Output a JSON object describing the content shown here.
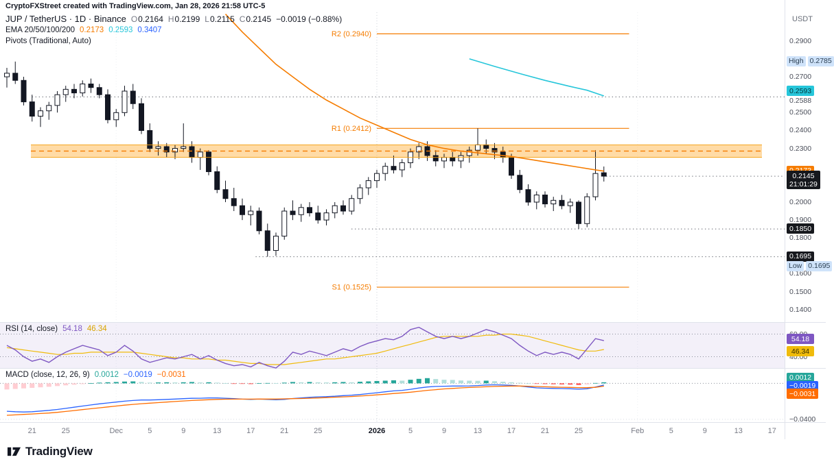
{
  "attribution": "CryptoFXStreet created with TradingView.com, Jan 28, 2026 21:58 UTC-5",
  "symbol": {
    "title": "JUP / TetherUS · 1D · Binance",
    "o_key": "O",
    "o_val": "0.2164",
    "h_key": "H",
    "h_val": "0.2199",
    "l_key": "L",
    "l_val": "0.2115",
    "c_key": "C",
    "c_val": "0.2145",
    "change": "−0.0019 (−0.88%)"
  },
  "ema": {
    "label": "EMA 20/50/100/200",
    "v1": "0.2173",
    "c1": "#f57c00",
    "v2": "0.2593",
    "c2": "#26c6da",
    "v3": "0.3407",
    "c3": "#2962ff"
  },
  "pivots_label": "Pivots (Traditional, Auto)",
  "rsi_legend": {
    "label": "RSI (14, close)",
    "v1": "54.18",
    "c1": "#7e57c2",
    "v2": "46.34",
    "c2": "#d9a400"
  },
  "macd_legend": {
    "label": "MACD (close, 12, 26, 9)",
    "v1": "0.0012",
    "c1": "#26a69a",
    "v2": "−0.0019",
    "c2": "#2962ff",
    "v3": "−0.0031",
    "c3": "#ff6d00"
  },
  "logo_text": "TradingView",
  "colors": {
    "up": "#ffffff",
    "down": "#131722",
    "ema_orange": "#f57c00",
    "ema_cyan": "#26c6da",
    "rsi": "#7e57c2",
    "rsi_ma": "#f0bb0b",
    "macd": "#2962ff",
    "signal": "#ff6d00",
    "hist_pos": "#26a69a",
    "hist_pos_weak": "#b2dfdb",
    "hist_neg": "#ff5252",
    "hist_neg_weak": "#ffcdd2",
    "pivot": "#f57c00",
    "zone_fill": "#ffb74d"
  },
  "price_axis": {
    "unit": "USDT",
    "ticks": [
      {
        "t": "0.2900",
        "v": 0.29
      },
      {
        "t": "0.2700",
        "v": 0.27
      },
      {
        "t": "0.2588",
        "v": 0.2588,
        "dy": 6
      },
      {
        "t": "0.2500",
        "v": 0.25
      },
      {
        "t": "0.2400",
        "v": 0.24
      },
      {
        "t": "0.2300",
        "v": 0.23
      },
      {
        "t": "0.2000",
        "v": 0.2
      },
      {
        "t": "0.1900",
        "v": 0.19
      },
      {
        "t": "0.1800",
        "v": 0.18
      },
      {
        "t": "0.1600",
        "v": 0.16
      },
      {
        "t": "0.1500",
        "v": 0.15
      },
      {
        "t": "0.1400",
        "v": 0.14
      }
    ],
    "badges": [
      {
        "t": "0.2785",
        "v": 0.2785,
        "style": "hilo",
        "label": "High"
      },
      {
        "t": "0.2593",
        "v": 0.2593,
        "bg": "#26c6da",
        "fg": "#00353b",
        "dy": -7
      },
      {
        "t": "0.2173",
        "v": 0.2173,
        "bg": "#f57c00",
        "fg": "#ffffff"
      },
      {
        "t": "0.2145",
        "v": 0.2145,
        "bg": "#16181d",
        "fg": "#ffffff",
        "countdown": "21:01:29"
      },
      {
        "t": "0.1850",
        "v": 0.185,
        "bg": "#16181d",
        "fg": "#ffffff"
      },
      {
        "t": "0.1695",
        "v": 0.1695,
        "bg": "#16181d",
        "fg": "#ffffff"
      },
      {
        "t": "0.1695",
        "v": 0.1695,
        "style": "hilo",
        "label": "Low",
        "dy": 14
      }
    ]
  },
  "rsi_axis": {
    "ticks": [
      {
        "t": "60.00",
        "v": 60
      },
      {
        "t": "40.00",
        "v": 40
      }
    ],
    "badges": [
      {
        "t": "54.18",
        "v": 54.18,
        "bg": "#7e57c2",
        "fg": "#ffffff",
        "dy": -2
      },
      {
        "t": "46.34",
        "v": 46.34,
        "bg": "#f0bb0b",
        "fg": "#3a2f00",
        "dy": 3
      }
    ]
  },
  "macd_axis": {
    "ticks": [
      {
        "t": "−0.0400",
        "v": -0.04
      }
    ],
    "badges": [
      {
        "t": "0.0012",
        "v": 0.0012,
        "bg": "#26a69a",
        "fg": "#ffffff",
        "dy": -6
      },
      {
        "t": "−0.0019",
        "v": -0.0019,
        "bg": "#2962ff",
        "fg": "#ffffff",
        "dy": 2
      },
      {
        "t": "−0.0031",
        "v": -0.0031,
        "bg": "#ff6d00",
        "fg": "#ffffff",
        "dy": 12
      }
    ]
  },
  "time_axis": [
    {
      "t": "21",
      "i": 3
    },
    {
      "t": "25",
      "i": 7
    },
    {
      "t": "Dec",
      "i": 13
    },
    {
      "t": "5",
      "i": 17
    },
    {
      "t": "9",
      "i": 21
    },
    {
      "t": "13",
      "i": 25
    },
    {
      "t": "17",
      "i": 29
    },
    {
      "t": "21",
      "i": 33
    },
    {
      "t": "25",
      "i": 37
    },
    {
      "t": "2026",
      "i": 44,
      "bold": true
    },
    {
      "t": "5",
      "i": 48
    },
    {
      "t": "9",
      "i": 52
    },
    {
      "t": "13",
      "i": 56
    },
    {
      "t": "17",
      "i": 60
    },
    {
      "t": "21",
      "i": 64
    },
    {
      "t": "25",
      "i": 68
    },
    {
      "t": "Feb",
      "i": 75
    },
    {
      "t": "5",
      "i": 79
    },
    {
      "t": "9",
      "i": 83
    },
    {
      "t": "13",
      "i": 87
    },
    {
      "t": "17",
      "i": 91
    }
  ],
  "chart_data": {
    "type": "candlestick",
    "symbol": "JUP/USDT",
    "timeframe": "1D",
    "start_date": "2025-11-18",
    "price_ylim": [
      0.133,
      0.306
    ],
    "candles": [
      [
        0.27,
        0.275,
        0.264,
        0.272
      ],
      [
        0.272,
        0.2785,
        0.266,
        0.268
      ],
      [
        0.268,
        0.27,
        0.254,
        0.256
      ],
      [
        0.256,
        0.26,
        0.245,
        0.248
      ],
      [
        0.248,
        0.253,
        0.242,
        0.251
      ],
      [
        0.251,
        0.256,
        0.246,
        0.254
      ],
      [
        0.254,
        0.262,
        0.25,
        0.26
      ],
      [
        0.26,
        0.265,
        0.256,
        0.263
      ],
      [
        0.263,
        0.266,
        0.258,
        0.261
      ],
      [
        0.261,
        0.268,
        0.259,
        0.266
      ],
      [
        0.266,
        0.269,
        0.261,
        0.264
      ],
      [
        0.264,
        0.266,
        0.258,
        0.26
      ],
      [
        0.26,
        0.263,
        0.244,
        0.246
      ],
      [
        0.246,
        0.252,
        0.242,
        0.25
      ],
      [
        0.25,
        0.265,
        0.248,
        0.262
      ],
      [
        0.262,
        0.266,
        0.252,
        0.255
      ],
      [
        0.255,
        0.258,
        0.238,
        0.24
      ],
      [
        0.24,
        0.244,
        0.228,
        0.23
      ],
      [
        0.23,
        0.234,
        0.226,
        0.231
      ],
      [
        0.231,
        0.233,
        0.225,
        0.228
      ],
      [
        0.228,
        0.232,
        0.224,
        0.23
      ],
      [
        0.23,
        0.244,
        0.228,
        0.231
      ],
      [
        0.231,
        0.234,
        0.222,
        0.225
      ],
      [
        0.225,
        0.23,
        0.218,
        0.228
      ],
      [
        0.228,
        0.229,
        0.215,
        0.217
      ],
      [
        0.217,
        0.22,
        0.205,
        0.207
      ],
      [
        0.207,
        0.212,
        0.2,
        0.202
      ],
      [
        0.202,
        0.208,
        0.195,
        0.198
      ],
      [
        0.198,
        0.202,
        0.19,
        0.193
      ],
      [
        0.193,
        0.198,
        0.187,
        0.195
      ],
      [
        0.195,
        0.197,
        0.182,
        0.184
      ],
      [
        0.184,
        0.188,
        0.1695,
        0.173
      ],
      [
        0.173,
        0.183,
        0.17,
        0.181
      ],
      [
        0.181,
        0.197,
        0.179,
        0.195
      ],
      [
        0.195,
        0.201,
        0.19,
        0.193
      ],
      [
        0.193,
        0.199,
        0.189,
        0.197
      ],
      [
        0.197,
        0.2,
        0.192,
        0.194
      ],
      [
        0.194,
        0.198,
        0.188,
        0.19
      ],
      [
        0.19,
        0.196,
        0.187,
        0.194
      ],
      [
        0.194,
        0.2,
        0.191,
        0.198
      ],
      [
        0.198,
        0.201,
        0.193,
        0.195
      ],
      [
        0.195,
        0.204,
        0.193,
        0.202
      ],
      [
        0.202,
        0.21,
        0.199,
        0.208
      ],
      [
        0.208,
        0.214,
        0.204,
        0.212
      ],
      [
        0.212,
        0.218,
        0.208,
        0.216
      ],
      [
        0.216,
        0.222,
        0.212,
        0.22
      ],
      [
        0.22,
        0.226,
        0.216,
        0.218
      ],
      [
        0.218,
        0.224,
        0.214,
        0.222
      ],
      [
        0.222,
        0.23,
        0.219,
        0.228
      ],
      [
        0.228,
        0.233,
        0.224,
        0.231
      ],
      [
        0.231,
        0.234,
        0.223,
        0.226
      ],
      [
        0.226,
        0.229,
        0.22,
        0.223
      ],
      [
        0.223,
        0.227,
        0.219,
        0.225
      ],
      [
        0.225,
        0.228,
        0.22,
        0.223
      ],
      [
        0.223,
        0.228,
        0.219,
        0.226
      ],
      [
        0.226,
        0.231,
        0.222,
        0.229
      ],
      [
        0.229,
        0.2412,
        0.226,
        0.232
      ],
      [
        0.232,
        0.235,
        0.227,
        0.23
      ],
      [
        0.23,
        0.233,
        0.224,
        0.228
      ],
      [
        0.228,
        0.231,
        0.222,
        0.225
      ],
      [
        0.225,
        0.227,
        0.213,
        0.215
      ],
      [
        0.215,
        0.218,
        0.205,
        0.207
      ],
      [
        0.207,
        0.21,
        0.198,
        0.2
      ],
      [
        0.2,
        0.206,
        0.196,
        0.204
      ],
      [
        0.204,
        0.206,
        0.197,
        0.199
      ],
      [
        0.199,
        0.203,
        0.195,
        0.201
      ],
      [
        0.201,
        0.204,
        0.196,
        0.198
      ],
      [
        0.198,
        0.202,
        0.194,
        0.2
      ],
      [
        0.2,
        0.201,
        0.185,
        0.188
      ],
      [
        0.188,
        0.205,
        0.186,
        0.203
      ],
      [
        0.203,
        0.229,
        0.201,
        0.216
      ],
      [
        0.2164,
        0.2199,
        0.2115,
        0.2145
      ]
    ],
    "ema_orange": {
      "name": "EMA (orange)",
      "last": 0.2173,
      "points": [
        [
          26,
          0.305
        ],
        [
          28,
          0.295
        ],
        [
          30,
          0.286
        ],
        [
          32,
          0.277
        ],
        [
          34,
          0.27
        ],
        [
          36,
          0.263
        ],
        [
          38,
          0.257
        ],
        [
          40,
          0.252
        ],
        [
          42,
          0.247
        ],
        [
          44,
          0.243
        ],
        [
          46,
          0.239
        ],
        [
          48,
          0.235
        ],
        [
          50,
          0.232
        ],
        [
          52,
          0.23
        ],
        [
          54,
          0.2285
        ],
        [
          56,
          0.2275
        ],
        [
          58,
          0.2265
        ],
        [
          60,
          0.2255
        ],
        [
          62,
          0.224
        ],
        [
          64,
          0.2225
        ],
        [
          66,
          0.221
        ],
        [
          68,
          0.2195
        ],
        [
          70,
          0.218
        ],
        [
          71,
          0.2173
        ]
      ]
    },
    "ema_cyan": {
      "name": "EMA (cyan)",
      "last": 0.2593,
      "points": [
        [
          55,
          0.28
        ],
        [
          58,
          0.2758
        ],
        [
          61,
          0.2718
        ],
        [
          64,
          0.268
        ],
        [
          67,
          0.2646
        ],
        [
          69,
          0.2625
        ],
        [
          71,
          0.2593
        ]
      ]
    },
    "pivots": {
      "span": [
        44,
        74
      ],
      "r2": {
        "label": "R2 (0.2940)",
        "v": 0.294
      },
      "r1": {
        "label": "R1 (0.2412)",
        "v": 0.2412
      },
      "s1": {
        "label": "S1 (0.1525)",
        "v": 0.1525
      }
    },
    "supply_zone": {
      "top": 0.232,
      "bottom": 0.225,
      "mid": 0.2285
    },
    "levels": [
      {
        "v": 0.2588,
        "from": 3
      },
      {
        "v": 0.2145,
        "from": 71.3
      },
      {
        "v": 0.185,
        "from": 41
      },
      {
        "v": 0.1695,
        "from": 29.6
      }
    ],
    "high_marker": {
      "label": "High",
      "value": 0.2785
    },
    "low_marker": {
      "label": "Low",
      "value": 0.1695
    },
    "rsi": {
      "ylim": [
        30,
        70
      ],
      "levels": [
        60,
        40
      ],
      "last": 54.18,
      "ma_last": 46.34,
      "values": [
        50,
        46,
        40,
        36,
        38,
        35,
        40,
        44,
        47,
        50,
        48,
        46,
        41,
        44,
        50,
        45,
        38,
        35,
        37,
        39,
        38,
        40,
        42,
        38,
        41,
        37,
        34,
        32,
        33,
        31,
        35,
        32,
        30,
        36,
        44,
        42,
        45,
        43,
        41,
        44,
        47,
        45,
        49,
        52,
        54,
        56,
        55,
        58,
        64,
        66,
        62,
        58,
        56,
        58,
        56,
        58,
        61,
        64,
        62,
        59,
        56,
        50,
        45,
        41,
        44,
        42,
        44,
        42,
        38,
        47,
        56,
        54.18
      ],
      "ma": [
        48,
        47,
        46,
        45,
        44,
        43,
        42,
        42,
        43,
        43,
        44,
        44,
        44,
        44,
        44,
        44,
        43,
        42,
        41,
        40,
        39,
        39,
        38,
        38,
        38,
        37,
        37,
        36,
        35,
        34,
        34,
        33,
        33,
        33,
        34,
        35,
        36,
        37,
        38,
        38,
        39,
        40,
        41,
        42,
        43,
        45,
        47,
        49,
        51,
        53,
        55,
        57,
        58,
        58,
        58,
        58,
        58,
        59,
        59,
        60,
        60,
        59,
        58,
        56,
        54,
        52,
        50,
        48,
        46,
        45,
        45,
        46.34
      ]
    },
    "macd": {
      "ylim": [
        -0.0431,
        0.0163
      ],
      "last_hist": 0.0012,
      "last_macd": -0.0019,
      "last_signal": -0.0031,
      "hist": [
        -0.0068,
        -0.0062,
        -0.0056,
        -0.005,
        -0.0044,
        -0.0038,
        -0.003,
        -0.0022,
        -0.0015,
        -0.0008,
        0.0002,
        0.0008,
        0.0012,
        0.0015,
        0.002,
        0.0022,
        0.0015,
        0.0008,
        0.001,
        0.0012,
        0.001,
        0.0012,
        0.0015,
        0.001,
        0.0012,
        0.0008,
        0.0002,
        -0.0004,
        -0.0006,
        -0.0008,
        0.0002,
        0.0004,
        0.0002,
        0.0008,
        0.0015,
        0.0012,
        0.0015,
        0.0012,
        0.001,
        0.0012,
        0.0015,
        0.0012,
        0.0018,
        0.0022,
        0.0026,
        0.003,
        0.0034,
        0.003,
        0.004,
        0.005,
        0.0058,
        0.0048,
        0.004,
        0.0038,
        0.0032,
        0.003,
        0.0028,
        0.003,
        0.0024,
        0.0018,
        0.0012,
        0.0006,
        0.0,
        -0.0006,
        -0.0008,
        -0.001,
        -0.0012,
        -0.0014,
        -0.0018,
        -0.0012,
        0.0004,
        0.0012
      ],
      "macd": [
        -0.031,
        -0.0315,
        -0.0318,
        -0.0315,
        -0.0308,
        -0.03,
        -0.029,
        -0.0278,
        -0.0265,
        -0.0252,
        -0.024,
        -0.0228,
        -0.0218,
        -0.0208,
        -0.0198,
        -0.019,
        -0.0185,
        -0.0185,
        -0.0182,
        -0.0178,
        -0.0174,
        -0.017,
        -0.0166,
        -0.0165,
        -0.0162,
        -0.0162,
        -0.0165,
        -0.017,
        -0.0175,
        -0.0178,
        -0.0175,
        -0.0178,
        -0.0182,
        -0.0178,
        -0.0168,
        -0.0162,
        -0.0155,
        -0.015,
        -0.0148,
        -0.0143,
        -0.0136,
        -0.0132,
        -0.0124,
        -0.0114,
        -0.0104,
        -0.0094,
        -0.0084,
        -0.0078,
        -0.0066,
        -0.0052,
        -0.004,
        -0.0034,
        -0.0032,
        -0.003,
        -0.003,
        -0.0028,
        -0.0024,
        -0.0018,
        -0.0016,
        -0.0018,
        -0.0022,
        -0.003,
        -0.004,
        -0.005,
        -0.0054,
        -0.0056,
        -0.0058,
        -0.006,
        -0.0064,
        -0.006,
        -0.004,
        -0.0019
      ],
      "signal": [
        -0.0355,
        -0.035,
        -0.0345,
        -0.034,
        -0.0335,
        -0.033,
        -0.0322,
        -0.0312,
        -0.0302,
        -0.0292,
        -0.0282,
        -0.0272,
        -0.0262,
        -0.0252,
        -0.0242,
        -0.0234,
        -0.0226,
        -0.022,
        -0.0214,
        -0.0208,
        -0.0202,
        -0.0196,
        -0.019,
        -0.0186,
        -0.0182,
        -0.0178,
        -0.0176,
        -0.0175,
        -0.0175,
        -0.0175,
        -0.0174,
        -0.0174,
        -0.0174,
        -0.0172,
        -0.017,
        -0.0168,
        -0.0165,
        -0.0162,
        -0.0158,
        -0.0154,
        -0.015,
        -0.0146,
        -0.0141,
        -0.0135,
        -0.0128,
        -0.0121,
        -0.0113,
        -0.0106,
        -0.0098,
        -0.0088,
        -0.0078,
        -0.007,
        -0.0062,
        -0.0056,
        -0.005,
        -0.0046,
        -0.0042,
        -0.0038,
        -0.0034,
        -0.0032,
        -0.003,
        -0.003,
        -0.0032,
        -0.0035,
        -0.0038,
        -0.0041,
        -0.0043,
        -0.0045,
        -0.0047,
        -0.0048,
        -0.0044,
        -0.0031
      ]
    }
  }
}
